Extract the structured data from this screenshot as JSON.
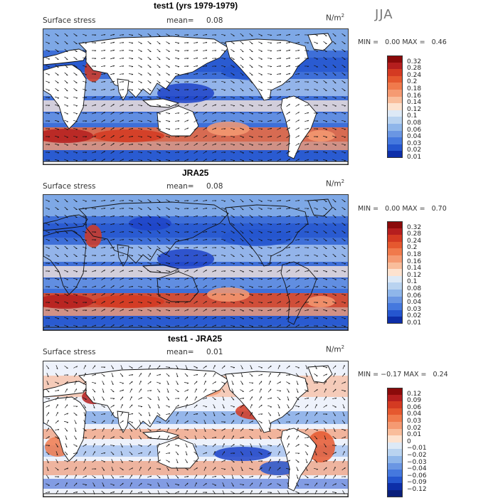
{
  "season": "JJA",
  "panels": [
    {
      "title": "test1 (yrs 1979-1979)",
      "variable": "Surface stress",
      "mean_label": "mean=",
      "mean_value": "0.08",
      "units": "N/m",
      "units_exp": "2",
      "min_label": "MIN =",
      "min_value": "0.00",
      "max_label": "MAX =",
      "max_value": "0.46",
      "colorbar_labels": [
        "0.32",
        "0.28",
        "0.24",
        "0.2",
        "0.18",
        "0.16",
        "0.14",
        "0.12",
        "0.1",
        "0.08",
        "0.06",
        "0.04",
        "0.03",
        "0.02",
        "0.01"
      ],
      "colorbar_colors": [
        "#8b0a0a",
        "#b51e1e",
        "#d43a22",
        "#e5582f",
        "#f07a4c",
        "#f59a72",
        "#f9bd9b",
        "#fde2cf",
        "#dde9f6",
        "#b9d3f0",
        "#8fb6ea",
        "#6a96e3",
        "#4578de",
        "#2556cf",
        "#0d2ea8"
      ],
      "map_colors": {
        "low": "#1d43c8",
        "mid": "#5a8ae0",
        "light": "#a9c6ef",
        "pale": "#f7efe9",
        "warm": "#f3a585",
        "hot": "#d43a22",
        "max": "#8b0a0a"
      }
    },
    {
      "title": "JRA25",
      "variable": "Surface stress",
      "mean_label": "mean=",
      "mean_value": "0.08",
      "units": "N/m",
      "units_exp": "2",
      "min_label": "MIN =",
      "min_value": "0.00",
      "max_label": "MAX =",
      "max_value": "0.70",
      "colorbar_labels": [
        "0.32",
        "0.28",
        "0.24",
        "0.2",
        "0.18",
        "0.16",
        "0.14",
        "0.12",
        "0.1",
        "0.08",
        "0.06",
        "0.04",
        "0.03",
        "0.02",
        "0.01"
      ],
      "colorbar_colors": [
        "#8b0a0a",
        "#b51e1e",
        "#d43a22",
        "#e5582f",
        "#f07a4c",
        "#f59a72",
        "#f9bd9b",
        "#fde2cf",
        "#dde9f6",
        "#b9d3f0",
        "#8fb6ea",
        "#6a96e3",
        "#4578de",
        "#2556cf",
        "#0d2ea8"
      ]
    },
    {
      "title": "test1 - JRA25",
      "variable": "Surface stress",
      "mean_label": "mean=",
      "mean_value": "0.01",
      "units": "N/m",
      "units_exp": "2",
      "min_label": "MIN =",
      "min_value": "−0.17",
      "max_label": "MAX =",
      "max_value": "0.24",
      "colorbar_labels": [
        "0.12",
        "0.09",
        "0.06",
        "0.04",
        "0.03",
        "0.02",
        "0.01",
        "0",
        "−0.01",
        "−0.02",
        "−0.03",
        "−0.04",
        "−0.06",
        "−0.09",
        "−0.12"
      ],
      "colorbar_colors": [
        "#8b0a0a",
        "#b51e1e",
        "#d43a22",
        "#e5582f",
        "#f07a4c",
        "#f59a72",
        "#f9bd9b",
        "#fde2cf",
        "#dde9f6",
        "#b9d3f0",
        "#8fb6ea",
        "#6a96e3",
        "#4578de",
        "#2556cf",
        "#0d2ea8",
        "#0a1f7a"
      ]
    }
  ]
}
